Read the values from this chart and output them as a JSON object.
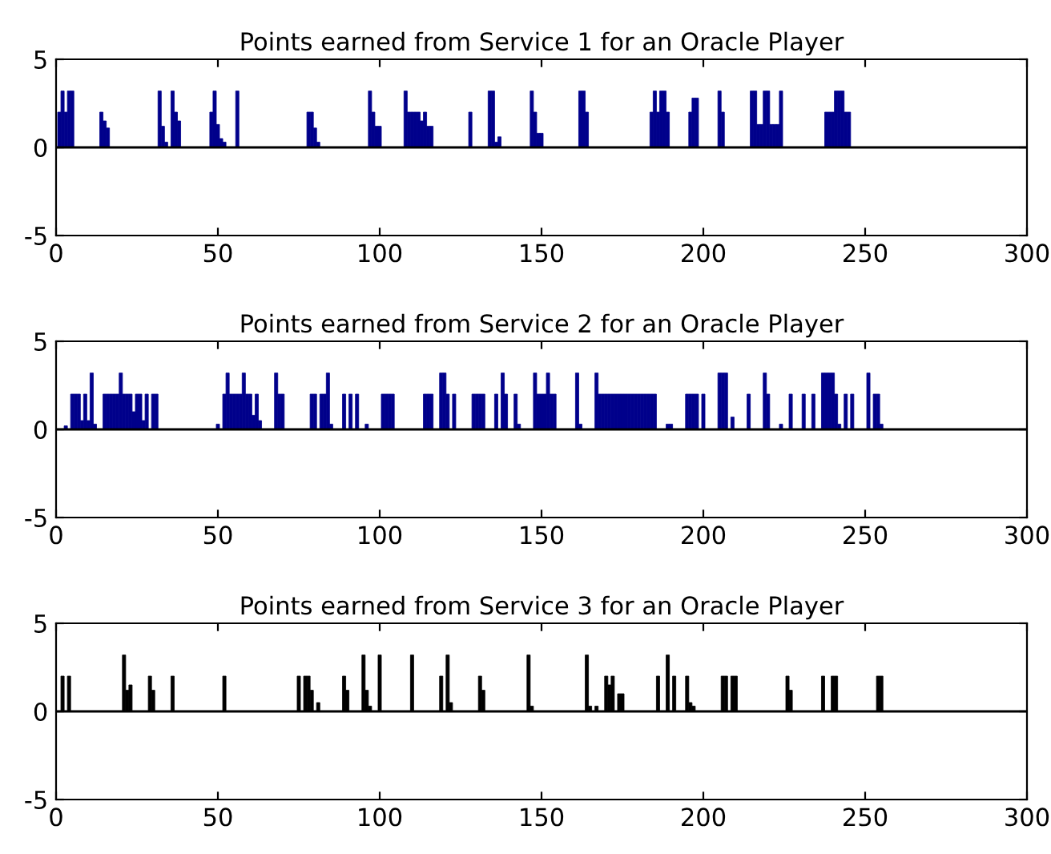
{
  "chart_data": [
    {
      "type": "bar",
      "title": "Points earned from Service 1 for an Oracle Player",
      "xlim": [
        0,
        300
      ],
      "ylim": [
        -5,
        5
      ],
      "xticks": [
        0,
        50,
        100,
        150,
        200,
        250,
        300
      ],
      "yticks": [
        -5,
        0,
        5
      ],
      "grid": false,
      "ref_lines": [
        {
          "axis": "y",
          "value": 0,
          "color": "#000000"
        }
      ],
      "series": [
        {
          "color": "#00008b",
          "x": [
            1,
            2,
            3,
            4,
            5,
            14,
            15,
            16,
            32,
            33,
            34,
            36,
            37,
            38,
            48,
            49,
            50,
            51,
            52,
            56,
            78,
            79,
            80,
            81,
            97,
            98,
            99,
            100,
            108,
            109,
            110,
            111,
            112,
            113,
            114,
            115,
            116,
            128,
            134,
            135,
            136,
            137,
            147,
            148,
            149,
            150,
            162,
            163,
            164,
            184,
            185,
            186,
            187,
            188,
            189,
            196,
            197,
            198,
            205,
            206,
            215,
            216,
            217,
            218,
            219,
            220,
            221,
            222,
            223,
            224,
            238,
            239,
            240,
            241,
            242,
            243,
            244,
            245
          ],
          "values": [
            2,
            3.2,
            2,
            3.2,
            3.2,
            2,
            1.5,
            1.1,
            3.2,
            1.2,
            0.3,
            3.2,
            2,
            1.5,
            2,
            3.2,
            1.3,
            0.5,
            0.3,
            3.2,
            2,
            2,
            1.1,
            0.3,
            3.2,
            2,
            1.2,
            1.2,
            3.2,
            2,
            2,
            2,
            2,
            1.5,
            2,
            1.2,
            1.2,
            2,
            3.2,
            3.2,
            0.3,
            0.6,
            3.2,
            2,
            0.8,
            0.8,
            3.2,
            3.2,
            2,
            2,
            3.2,
            2,
            3.2,
            3.2,
            2,
            2,
            2.8,
            2.8,
            3.2,
            2,
            3.2,
            3.2,
            1.3,
            1.3,
            3.2,
            3.2,
            1.3,
            1.3,
            1.3,
            3.2,
            2,
            2,
            2,
            3.2,
            3.2,
            3.2,
            2,
            2
          ]
        }
      ]
    },
    {
      "type": "bar",
      "title": "Points earned from Service 2 for an Oracle Player",
      "xlim": [
        0,
        300
      ],
      "ylim": [
        -5,
        5
      ],
      "xticks": [
        0,
        50,
        100,
        150,
        200,
        250,
        300
      ],
      "yticks": [
        -5,
        0,
        5
      ],
      "grid": false,
      "ref_lines": [
        {
          "axis": "y",
          "value": 0,
          "color": "#000000"
        }
      ],
      "series": [
        {
          "color": "#00008b",
          "x": [
            3,
            5,
            6,
            7,
            8,
            9,
            10,
            11,
            12,
            15,
            16,
            17,
            18,
            19,
            20,
            21,
            22,
            23,
            24,
            25,
            26,
            27,
            28,
            30,
            31,
            50,
            52,
            53,
            54,
            55,
            56,
            57,
            58,
            59,
            60,
            61,
            62,
            63,
            68,
            69,
            70,
            79,
            80,
            82,
            83,
            84,
            85,
            89,
            91,
            93,
            96,
            101,
            102,
            103,
            104,
            114,
            115,
            116,
            119,
            120,
            121,
            123,
            129,
            130,
            131,
            132,
            136,
            138,
            139,
            142,
            143,
            148,
            149,
            150,
            151,
            152,
            153,
            154,
            161,
            162,
            167,
            168,
            169,
            170,
            171,
            172,
            173,
            174,
            175,
            176,
            177,
            178,
            179,
            180,
            181,
            182,
            183,
            184,
            185,
            189,
            190,
            195,
            196,
            197,
            198,
            200,
            205,
            206,
            207,
            209,
            214,
            219,
            220,
            224,
            227,
            231,
            234,
            237,
            238,
            239,
            240,
            241,
            242,
            244,
            246,
            251,
            253,
            254,
            255
          ],
          "values": [
            0.2,
            2,
            2,
            2,
            0.5,
            2,
            0.5,
            3.2,
            0.3,
            2,
            2,
            2,
            2,
            2,
            3.2,
            2,
            2,
            2,
            1,
            2,
            2,
            0.5,
            2,
            2,
            2,
            0.3,
            2,
            3.2,
            2,
            2,
            2,
            2,
            3.2,
            2,
            2,
            0.8,
            2,
            0.5,
            3.2,
            2,
            2,
            2,
            2,
            2,
            2,
            3.2,
            0.3,
            2,
            2,
            2,
            0.3,
            2,
            2,
            2,
            2,
            2,
            2,
            2,
            3.2,
            3.2,
            2,
            2,
            2,
            2,
            2,
            2,
            2,
            3.2,
            2,
            2,
            0.3,
            3.2,
            2,
            2,
            2,
            3.2,
            2,
            2,
            3.2,
            0.3,
            3.2,
            2,
            2,
            2,
            2,
            2,
            2,
            2,
            2,
            2,
            2,
            2,
            2,
            2,
            2,
            2,
            2,
            2,
            2,
            0.3,
            0.3,
            2,
            2,
            2,
            2,
            2,
            3.2,
            3.2,
            3.2,
            0.7,
            2,
            3.2,
            2,
            0.3,
            2,
            2,
            2,
            3.2,
            3.2,
            3.2,
            3.2,
            2,
            0.3,
            2,
            2,
            3.2,
            2,
            2,
            0.3
          ]
        }
      ]
    },
    {
      "type": "bar",
      "title": "Points earned from Service 3 for an Oracle Player",
      "xlim": [
        0,
        300
      ],
      "ylim": [
        -5,
        5
      ],
      "xticks": [
        0,
        50,
        100,
        150,
        200,
        250,
        300
      ],
      "yticks": [
        -5,
        0,
        5
      ],
      "grid": false,
      "ref_lines": [
        {
          "axis": "y",
          "value": 0,
          "color": "#000000"
        }
      ],
      "series": [
        {
          "color": "#000000",
          "x": [
            2,
            4,
            21,
            22,
            23,
            29,
            30,
            36,
            52,
            75,
            77,
            78,
            79,
            81,
            89,
            90,
            95,
            96,
            97,
            100,
            110,
            119,
            121,
            122,
            131,
            132,
            146,
            147,
            164,
            165,
            167,
            170,
            171,
            172,
            174,
            175,
            186,
            189,
            191,
            195,
            196,
            197,
            206,
            207,
            209,
            210,
            226,
            227,
            237,
            240,
            241,
            254,
            255
          ],
          "values": [
            2,
            2,
            3.2,
            1.2,
            1.5,
            2,
            1.2,
            2,
            2,
            2,
            2,
            2,
            1.2,
            0.5,
            2,
            1.2,
            3.2,
            1.2,
            0.3,
            3.2,
            3.2,
            2,
            3.2,
            0.5,
            2,
            1.2,
            3.2,
            0.3,
            3.2,
            0.3,
            0.3,
            2,
            1.5,
            2,
            1,
            1,
            2,
            3.2,
            2,
            2,
            0.5,
            0.3,
            2,
            2,
            2,
            2,
            2,
            1.2,
            2,
            2,
            2,
            2,
            2
          ]
        }
      ]
    }
  ]
}
